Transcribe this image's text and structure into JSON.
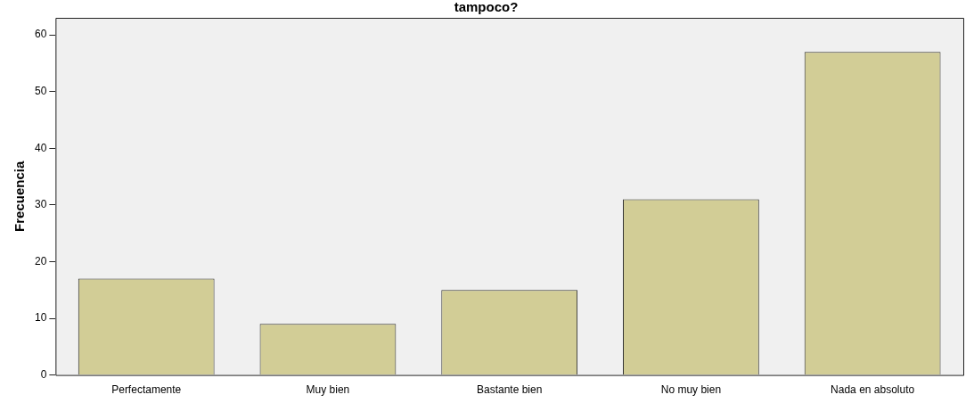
{
  "chart_data": {
    "type": "bar",
    "title": "tampoco?",
    "ylabel": "Frecuencia",
    "categories": [
      "Perfectamente",
      "Muy bien",
      "Bastante bien",
      "No muy bien",
      "Nada en absoluto"
    ],
    "values": [
      17,
      9,
      15,
      31,
      57
    ],
    "color": "#d2cd96",
    "ylim": [
      0,
      63
    ],
    "yticks": [
      0,
      10,
      20,
      30,
      40,
      50,
      60
    ],
    "grid": false,
    "legend": false
  }
}
